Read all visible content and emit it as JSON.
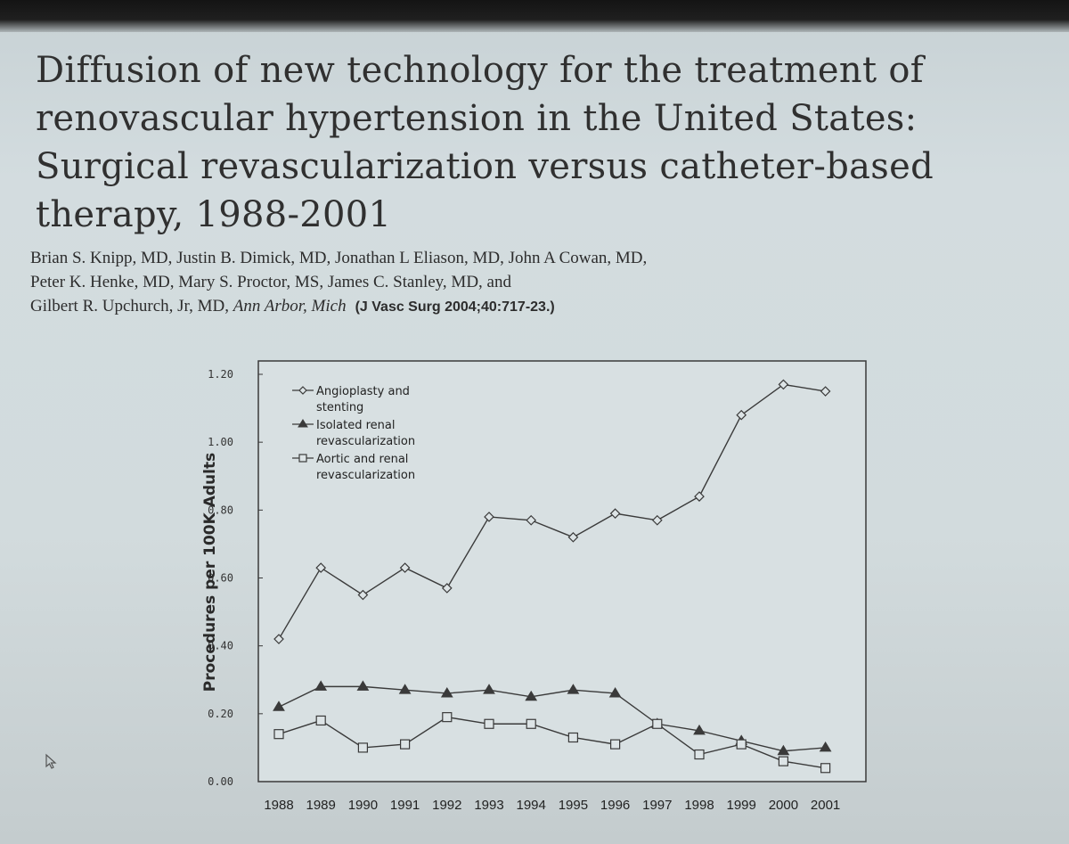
{
  "slide": {
    "title_lines": [
      "Diffusion of new technology for the treatment of",
      "renovascular hypertension in the United States:",
      "Surgical revascularization versus catheter-based",
      "therapy, 1988-2001"
    ],
    "author_lines": [
      "Brian S. Knipp, MD, Justin B. Dimick, MD, Jonathan L Eliason, MD, John A Cowan, MD,",
      "Peter K. Henke, MD, Mary S. Proctor, MS, James C. Stanley, MD, and",
      "Gilbert R. Upchurch, Jr, MD,"
    ],
    "place": "Ann Arbor, Mich",
    "citation": "(J Vasc Surg 2004;40:717-23.)"
  },
  "chart_data": {
    "type": "line",
    "title": "",
    "xlabel": "",
    "ylabel": "Procedures per 100K Adults",
    "ylim": [
      0,
      1.2
    ],
    "yticks": [
      "0.00",
      "0.20",
      "0.40",
      "0.60",
      "0.80",
      "1.00",
      "1.20"
    ],
    "categories": [
      "1988",
      "1989",
      "1990",
      "1991",
      "1992",
      "1993",
      "1994",
      "1995",
      "1996",
      "1997",
      "1998",
      "1999",
      "2000",
      "2001"
    ],
    "legend_position": "top-left",
    "series": [
      {
        "name": "Angioplasty and stenting",
        "legend_lines": [
          "Angioplasty and",
          "stenting"
        ],
        "marker": "diamond",
        "values": [
          0.42,
          0.63,
          0.55,
          0.63,
          0.57,
          0.78,
          0.77,
          0.72,
          0.79,
          0.77,
          0.84,
          1.08,
          1.17,
          1.15
        ]
      },
      {
        "name": "Isolated renal revascularization",
        "legend_lines": [
          "Isolated renal",
          "revascularization"
        ],
        "marker": "triangle",
        "values": [
          0.22,
          0.28,
          0.28,
          0.27,
          0.26,
          0.27,
          0.25,
          0.27,
          0.26,
          0.17,
          0.15,
          0.12,
          0.09,
          0.1
        ]
      },
      {
        "name": "Aortic and renal revascularization",
        "legend_lines": [
          "Aortic and renal",
          "revascularization"
        ],
        "marker": "square",
        "values": [
          0.14,
          0.18,
          0.1,
          0.11,
          0.19,
          0.17,
          0.17,
          0.13,
          0.11,
          0.17,
          0.08,
          0.11,
          0.06,
          0.04
        ]
      }
    ],
    "colors": {
      "line": "#3a3a3a",
      "axis": "#3a3a3a",
      "marker_fill": "#dde4e6",
      "plot_background": "#d8e0e2"
    }
  }
}
